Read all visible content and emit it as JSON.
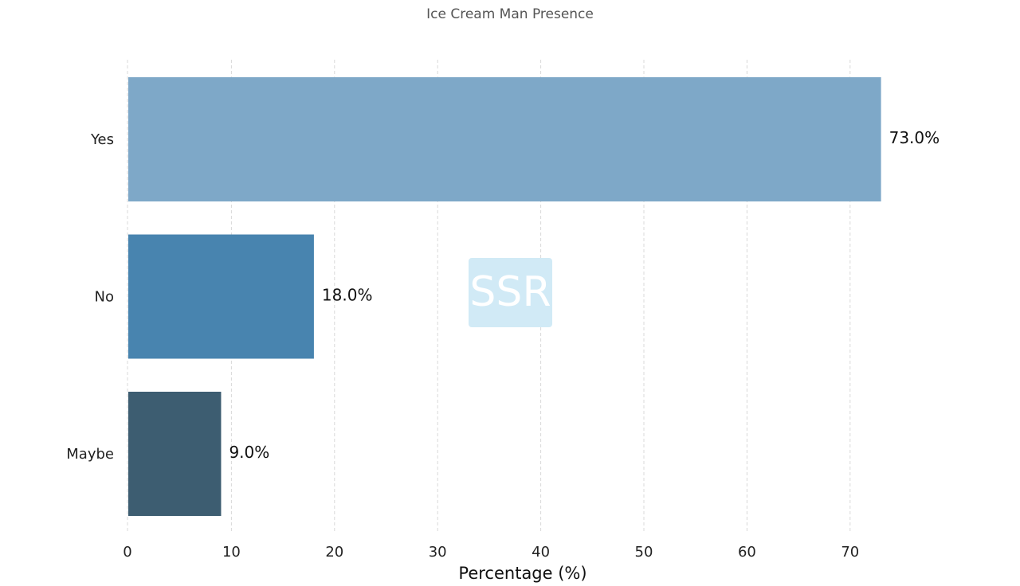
{
  "chart_data": {
    "type": "bar",
    "orientation": "horizontal",
    "title": "Ice Cream Man Presence",
    "xlabel": "Percentage (%)",
    "ylabel": "",
    "categories": [
      "Yes",
      "No",
      "Maybe"
    ],
    "values": [
      73.0,
      18.0,
      9.0
    ],
    "value_labels": [
      "73.0%",
      "18.0%",
      "9.0%"
    ],
    "bar_colors": [
      "#7ea8c8",
      "#4884af",
      "#3d5d71"
    ],
    "xlim": [
      0,
      73
    ],
    "xticks": [
      0,
      10,
      20,
      30,
      40,
      50,
      60,
      70
    ],
    "xtick_labels": [
      "0",
      "10",
      "20",
      "30",
      "40",
      "50",
      "60",
      "70"
    ],
    "grid": "vertical dashed",
    "legend": "none"
  },
  "watermark": {
    "text": "SSR"
  }
}
